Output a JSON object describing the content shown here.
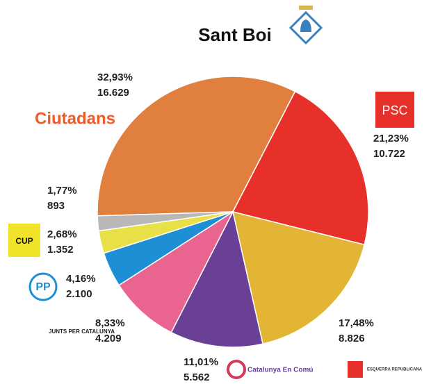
{
  "chart_data": {
    "type": "pie",
    "title": "Sant Boi",
    "series": [
      {
        "name": "Ciutadans",
        "color": "#e07f3e",
        "value": 32.93,
        "value_label": "32,93%",
        "votes": 16629,
        "votes_label": "16.629"
      },
      {
        "name": "PSC",
        "color": "#e8302a",
        "value": 21.23,
        "value_label": "21,23%",
        "votes": 10722,
        "votes_label": "10.722"
      },
      {
        "name": "ESQUERRA REPUBLICANA",
        "color": "#e2b634",
        "value": 17.48,
        "value_label": "17,48%",
        "votes": 8826,
        "votes_label": "8.826"
      },
      {
        "name": "Catalunya En Comú",
        "color": "#6a3f96",
        "value": 11.01,
        "value_label": "11,01%",
        "votes": 5562,
        "votes_label": "5.562"
      },
      {
        "name": "JUNTS PER CATALUNYA",
        "color": "#e9648f",
        "value": 8.33,
        "value_label": "8,33%",
        "votes": 4209,
        "votes_label": "4.209"
      },
      {
        "name": "PP",
        "color": "#1e8fd5",
        "value": 4.16,
        "value_label": "4,16%",
        "votes": 2100,
        "votes_label": "2.100"
      },
      {
        "name": "CUP",
        "color": "#e8e046",
        "value": 2.68,
        "value_label": "2,68%",
        "votes": 1352,
        "votes_label": "1.352"
      },
      {
        "color": "#b8b8b8",
        "value": 1.77,
        "value_label": "1,77%",
        "votes": 893,
        "votes_label": "893"
      }
    ]
  }
}
